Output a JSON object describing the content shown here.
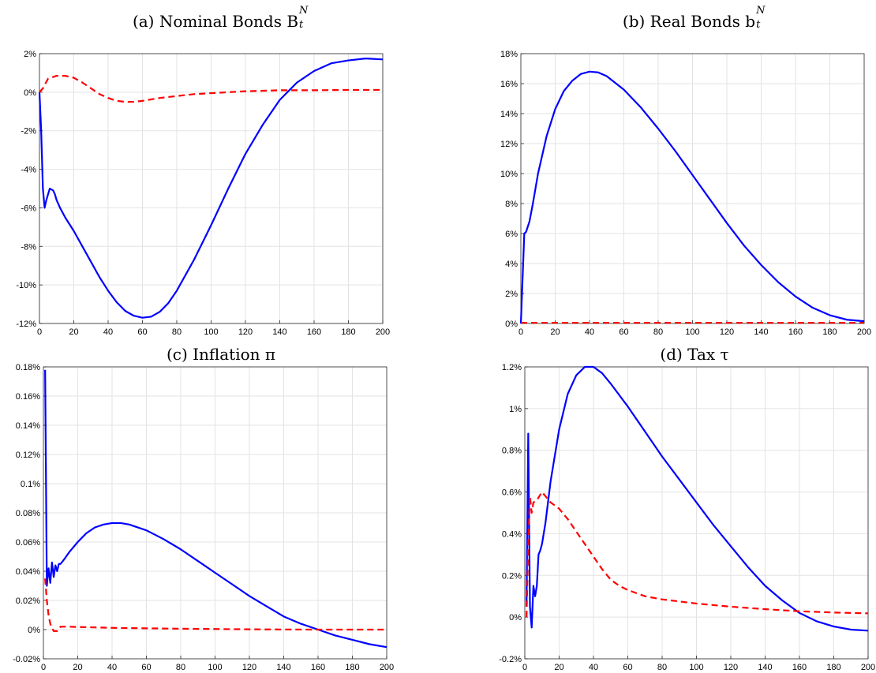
{
  "chart_data": [
    {
      "type": "line",
      "title": "(a) Nominal Bonds B",
      "title_super": "N",
      "title_sub": "t",
      "xlabel": "",
      "ylabel": "",
      "xlim": [
        0,
        200
      ],
      "ylim": [
        -12,
        2
      ],
      "xticks": [
        0,
        20,
        40,
        60,
        80,
        100,
        120,
        140,
        160,
        180,
        200
      ],
      "yticks": [
        -12,
        -10,
        -8,
        -6,
        -4,
        -2,
        0,
        2
      ],
      "ytick_labels": [
        "-12%",
        "-10%",
        "-8%",
        "-6%",
        "-4%",
        "-2%",
        "0%",
        "2%"
      ],
      "grid": true,
      "series": [
        {
          "style": "solid",
          "color": "#0000ff",
          "x": [
            0,
            1,
            2,
            3,
            4,
            5,
            6,
            7,
            8,
            9,
            10,
            12,
            15,
            20,
            25,
            30,
            35,
            40,
            45,
            50,
            55,
            60,
            65,
            70,
            75,
            80,
            90,
            100,
            110,
            120,
            130,
            140,
            150,
            160,
            170,
            180,
            190,
            200
          ],
          "y": [
            0,
            -2,
            -5,
            -6,
            -5.6,
            -5.3,
            -5,
            -5.05,
            -5.1,
            -5.3,
            -5.6,
            -6,
            -6.5,
            -7.2,
            -8,
            -8.8,
            -9.6,
            -10.3,
            -10.9,
            -11.35,
            -11.6,
            -11.7,
            -11.65,
            -11.4,
            -10.95,
            -10.3,
            -8.7,
            -6.9,
            -5,
            -3.2,
            -1.7,
            -0.4,
            0.5,
            1.1,
            1.5,
            1.65,
            1.75,
            1.7
          ]
        },
        {
          "style": "dashed",
          "color": "#ff0000",
          "x": [
            0,
            2,
            5,
            10,
            15,
            20,
            25,
            30,
            35,
            40,
            45,
            50,
            55,
            60,
            70,
            80,
            90,
            100,
            120,
            140,
            160,
            180,
            200
          ],
          "y": [
            0,
            0.2,
            0.7,
            0.85,
            0.85,
            0.75,
            0.5,
            0.2,
            -0.1,
            -0.3,
            -0.45,
            -0.5,
            -0.5,
            -0.45,
            -0.3,
            -0.2,
            -0.1,
            -0.05,
            0.05,
            0.1,
            0.1,
            0.12,
            0.12
          ]
        }
      ]
    },
    {
      "type": "line",
      "title": "(b) Real Bonds b",
      "title_super": "N",
      "title_sub": "t",
      "xlabel": "",
      "ylabel": "",
      "xlim": [
        0,
        200
      ],
      "ylim": [
        0,
        18
      ],
      "xticks": [
        0,
        20,
        40,
        60,
        80,
        100,
        120,
        140,
        160,
        180,
        200
      ],
      "yticks": [
        0,
        2,
        4,
        6,
        8,
        10,
        12,
        14,
        16,
        18
      ],
      "ytick_labels": [
        "0%",
        "2%",
        "4%",
        "6%",
        "8%",
        "10%",
        "12%",
        "14%",
        "16%",
        "18%"
      ],
      "grid": true,
      "series": [
        {
          "style": "solid",
          "color": "#0000ff",
          "x": [
            0,
            1,
            2,
            3,
            5,
            7,
            10,
            15,
            20,
            25,
            30,
            35,
            40,
            45,
            50,
            60,
            70,
            80,
            90,
            100,
            110,
            120,
            130,
            140,
            150,
            160,
            170,
            180,
            190,
            200
          ],
          "y": [
            0,
            3,
            6,
            6.1,
            6.8,
            8,
            10,
            12.5,
            14.3,
            15.5,
            16.2,
            16.65,
            16.8,
            16.75,
            16.5,
            15.6,
            14.4,
            13,
            11.5,
            9.9,
            8.3,
            6.7,
            5.2,
            3.9,
            2.75,
            1.8,
            1.05,
            0.55,
            0.25,
            0.15
          ]
        },
        {
          "style": "dashed",
          "color": "#ff0000",
          "x": [
            0,
            50,
            100,
            150,
            200
          ],
          "y": [
            0.05,
            0.05,
            0.05,
            0.05,
            0.05
          ]
        }
      ]
    },
    {
      "type": "line",
      "title": "(c) Inflation π",
      "xlabel": "",
      "ylabel": "",
      "xlim": [
        0,
        200
      ],
      "ylim": [
        -0.02,
        0.18
      ],
      "xticks": [
        0,
        20,
        40,
        60,
        80,
        100,
        120,
        140,
        160,
        180,
        200
      ],
      "yticks": [
        -0.02,
        0,
        0.02,
        0.04,
        0.06,
        0.08,
        0.1,
        0.12,
        0.14,
        0.16,
        0.18
      ],
      "ytick_labels": [
        "-0.02%",
        "0%",
        "0.02%",
        "0.04%",
        "0.06%",
        "0.08%",
        "0.1%",
        "0.12%",
        "0.14%",
        "0.16%",
        "0.18%"
      ],
      "grid": true,
      "series": [
        {
          "style": "solid",
          "color": "#0000ff",
          "x": [
            1,
            2,
            3,
            4,
            5,
            6,
            7,
            8,
            9,
            10,
            12,
            15,
            20,
            25,
            30,
            35,
            40,
            45,
            50,
            60,
            70,
            80,
            90,
            100,
            110,
            120,
            130,
            140,
            150,
            160,
            170,
            180,
            190,
            200
          ],
          "y": [
            0.178,
            0.03,
            0.042,
            0.032,
            0.046,
            0.036,
            0.044,
            0.04,
            0.045,
            0.045,
            0.048,
            0.053,
            0.06,
            0.066,
            0.07,
            0.072,
            0.073,
            0.073,
            0.072,
            0.068,
            0.062,
            0.055,
            0.047,
            0.039,
            0.031,
            0.023,
            0.016,
            0.009,
            0.004,
            0,
            -0.004,
            -0.007,
            -0.01,
            -0.012
          ]
        },
        {
          "style": "dashed",
          "color": "#ff0000",
          "x": [
            1,
            2,
            3,
            4,
            5,
            6,
            8,
            10,
            15,
            20,
            40,
            60,
            80,
            100,
            120,
            140,
            160,
            180,
            200
          ],
          "y": [
            0.035,
            0.02,
            0.01,
            0.004,
            0.001,
            -0.001,
            -0.001,
            0.002,
            0.002,
            0.0018,
            0.0012,
            0.0009,
            0.0006,
            0.0004,
            0.0002,
            0.0001,
            0,
            0,
            0
          ]
        }
      ]
    },
    {
      "type": "line",
      "title": "(d) Tax τ",
      "xlabel": "",
      "ylabel": "",
      "xlim": [
        0,
        200
      ],
      "ylim": [
        -0.2,
        1.2
      ],
      "xticks": [
        0,
        20,
        40,
        60,
        80,
        100,
        120,
        140,
        160,
        180,
        200
      ],
      "yticks": [
        -0.2,
        0,
        0.2,
        0.4,
        0.6,
        0.8,
        1,
        1.2
      ],
      "ytick_labels": [
        "-0.2%",
        "0%",
        "0.2%",
        "0.4%",
        "0.6%",
        "0.8%",
        "1%",
        "1.2%"
      ],
      "grid": true,
      "series": [
        {
          "style": "solid",
          "color": "#0000ff",
          "x": [
            1,
            2,
            3,
            4,
            5,
            6,
            7,
            8,
            9,
            10,
            12,
            15,
            20,
            25,
            30,
            35,
            40,
            45,
            50,
            60,
            70,
            80,
            90,
            100,
            110,
            120,
            130,
            140,
            150,
            160,
            170,
            180,
            190,
            200
          ],
          "y": [
            0.05,
            0.88,
            0.05,
            -0.05,
            0.15,
            0.1,
            0.15,
            0.3,
            0.32,
            0.35,
            0.45,
            0.65,
            0.9,
            1.07,
            1.16,
            1.2,
            1.2,
            1.17,
            1.12,
            1.01,
            0.89,
            0.77,
            0.66,
            0.55,
            0.44,
            0.34,
            0.24,
            0.15,
            0.08,
            0.02,
            -0.02,
            -0.045,
            -0.06,
            -0.065
          ]
        },
        {
          "style": "dashed",
          "color": "#ff0000",
          "x": [
            1,
            2,
            3,
            4,
            5,
            7,
            10,
            12,
            15,
            20,
            25,
            30,
            35,
            40,
            45,
            50,
            55,
            60,
            70,
            80,
            90,
            100,
            120,
            140,
            160,
            180,
            200
          ],
          "y": [
            0.0,
            0.35,
            0.58,
            0.5,
            0.55,
            0.56,
            0.6,
            0.58,
            0.55,
            0.52,
            0.47,
            0.41,
            0.35,
            0.29,
            0.23,
            0.18,
            0.15,
            0.13,
            0.1,
            0.085,
            0.075,
            0.065,
            0.05,
            0.038,
            0.028,
            0.022,
            0.018
          ]
        }
      ]
    }
  ]
}
